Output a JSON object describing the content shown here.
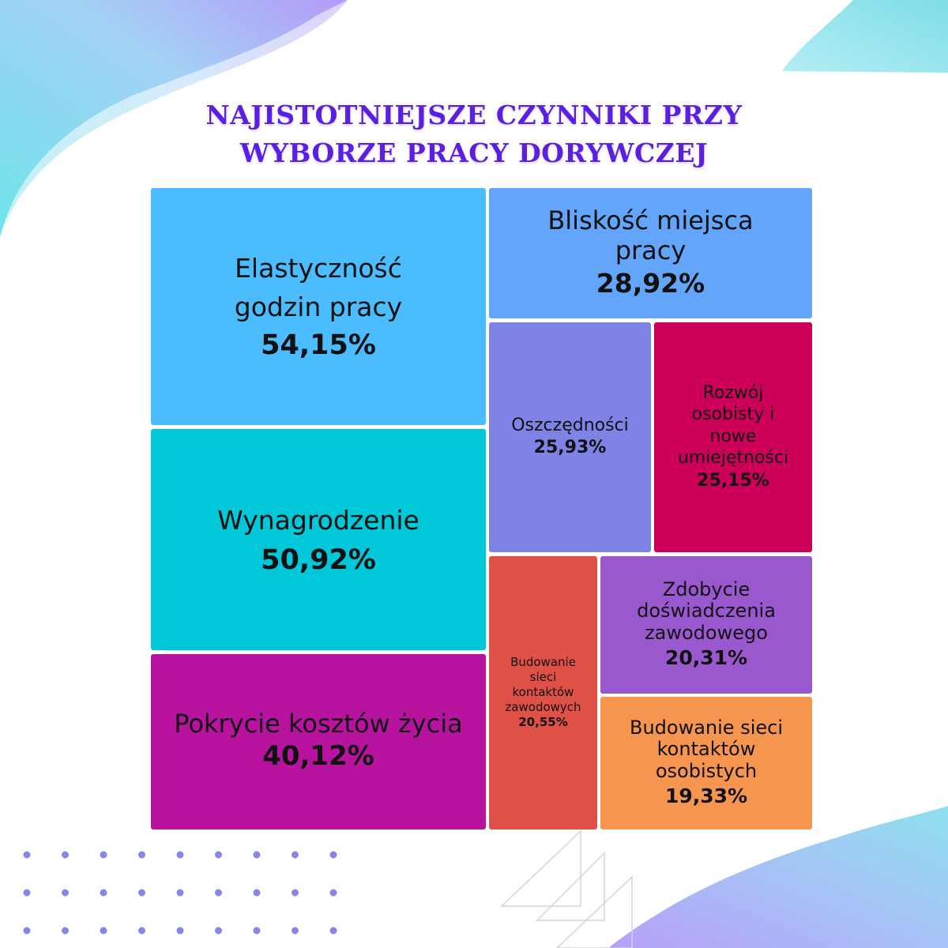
{
  "title_lines": [
    "NAJISTOTNIEJSZE CZYNNIKI PRZY",
    "WYBORZE PRACY DORYWCZEJ"
  ],
  "chart_data": {
    "type": "treemap",
    "title": "NAJISTOTNIEJSZE CZYNNIKI PRZY WYBORZE PRACY DORYWCZEJ",
    "unit": "%",
    "items": [
      {
        "label": "Elastyczność godzin pracy",
        "value": 54.15,
        "value_label": "54,15%",
        "color": "#4bbdfe"
      },
      {
        "label": "Wynagrodzenie",
        "value": 50.92,
        "value_label": "50,92%",
        "color": "#00c8d8"
      },
      {
        "label": "Pokrycie kosztów życia",
        "value": 40.12,
        "value_label": "40,12%",
        "color": "#b7139f"
      },
      {
        "label": "Bliskość miejsca pracy",
        "value": 28.92,
        "value_label": "28,92%",
        "color": "#62a5fb"
      },
      {
        "label": "Oszczędności",
        "value": 25.93,
        "value_label": "25,93%",
        "color": "#8083e6"
      },
      {
        "label": "Rozwój osobisty i nowe umiejętności",
        "value": 25.15,
        "value_label": "25,15%",
        "color": "#cc0058"
      },
      {
        "label": "Budowanie sieci kontaktów zawodowych",
        "value": 20.55,
        "value_label": "20,55%",
        "color": "#df5047"
      },
      {
        "label": "Zdobycie doświadczenia zawodowego",
        "value": 20.31,
        "value_label": "20,31%",
        "color": "#9a58cf"
      },
      {
        "label": "Budowanie sieci kontaktów osobistych",
        "value": 19.33,
        "value_label": "19,33%",
        "color": "#f5954f"
      }
    ]
  },
  "decor": {
    "wave_left": "#7ee3ea",
    "wave_left_inner": "#b7a6f7",
    "wave_top_right": "#9fe6f0",
    "wave_bottom_right": "#a8b6f7",
    "dot_color": "#8785e8",
    "triangle_stroke": "#d4d4dc"
  }
}
